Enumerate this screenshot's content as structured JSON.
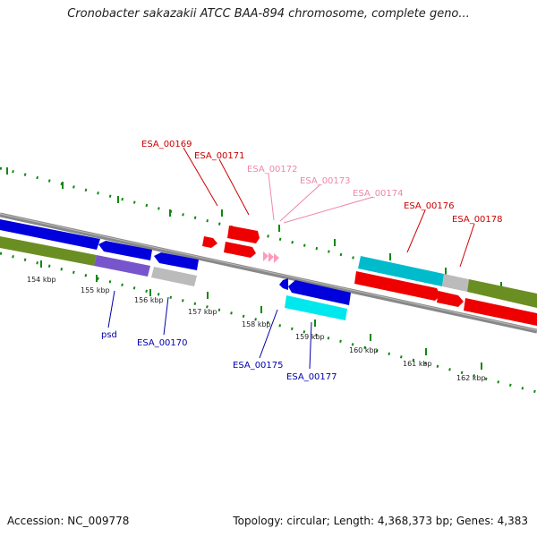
{
  "title": "Cronobacter sakazakii ATCC BAA-894 chromosome, complete geno...",
  "footer": {
    "accession": "Accession: NC_009778",
    "summary": "Topology: circular; Length: 4,368,373 bp; Genes: 4,383"
  },
  "kbp_labels": [
    "154 kbp",
    "155 kbp",
    "156 kbp",
    "157 kbp",
    "158 kbp",
    "159 kbp",
    "160 kbp",
    "161 kbp",
    "162 kbp"
  ],
  "gene_labels": {
    "esa_00169": "ESA_00169",
    "esa_00171": "ESA_00171",
    "esa_00172": "ESA_00172",
    "esa_00173": "ESA_00173",
    "esa_00174": "ESA_00174",
    "esa_00176": "ESA_00176",
    "esa_00178": "ESA_00178",
    "psd": "psd",
    "esa_00170": "ESA_00170",
    "esa_00175": "ESA_00175",
    "esa_00177": "ESA_00177"
  },
  "colors": {
    "forward_label": "#cc0000",
    "forward_faint_label": "#ee88aa",
    "reverse_label": "#0000aa",
    "tick": "#118811"
  }
}
